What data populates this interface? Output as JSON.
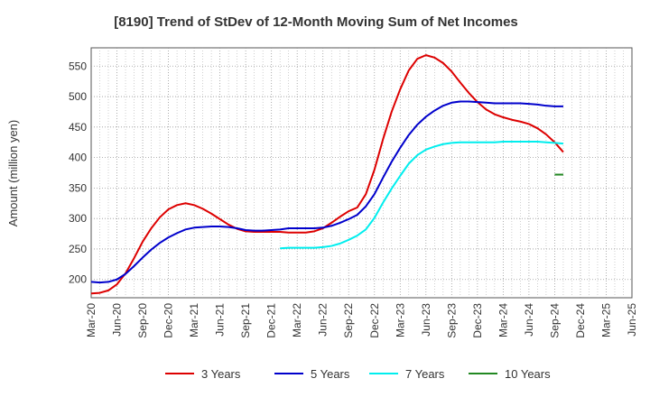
{
  "chart_data": {
    "type": "line",
    "title": "[8190]  Trend of StDev of 12-Month Moving Sum of Net Incomes",
    "xlabel": "",
    "ylabel": "Amount (million yen)",
    "ylim": [
      170,
      580
    ],
    "yticks": [
      200,
      250,
      300,
      350,
      400,
      450,
      500,
      550
    ],
    "x_ticks": [
      "Mar-20",
      "Jun-20",
      "Sep-20",
      "Dec-20",
      "Mar-21",
      "Jun-21",
      "Sep-21",
      "Dec-21",
      "Mar-22",
      "Jun-22",
      "Sep-22",
      "Dec-22",
      "Mar-23",
      "Jun-23",
      "Sep-23",
      "Dec-23",
      "Mar-24",
      "Jun-24",
      "Sep-24",
      "Dec-24",
      "Mar-25",
      "Jun-25"
    ],
    "grid": true,
    "legend_position": "bottom",
    "series": [
      {
        "name": "3 Years",
        "color": "#dd0000",
        "start_index": 0,
        "values": [
          177,
          178,
          182,
          192,
          210,
          235,
          262,
          284,
          302,
          315,
          322,
          325,
          322,
          316,
          308,
          299,
          290,
          283,
          279,
          278,
          278,
          278,
          278,
          277,
          277,
          277,
          279,
          284,
          293,
          303,
          312,
          318,
          340,
          380,
          430,
          475,
          512,
          543,
          562,
          568,
          564,
          555,
          541,
          523,
          506,
          491,
          479,
          471,
          466,
          462,
          459,
          455,
          448,
          438,
          425,
          409
        ]
      },
      {
        "name": "5 Years",
        "color": "#0000cc",
        "start_index": 0,
        "values": [
          196,
          195,
          196,
          200,
          209,
          222,
          236,
          249,
          260,
          269,
          276,
          282,
          285,
          286,
          287,
          287,
          286,
          284,
          281,
          280,
          280,
          281,
          282,
          284,
          284,
          284,
          284,
          285,
          288,
          293,
          299,
          306,
          320,
          340,
          367,
          393,
          416,
          437,
          454,
          467,
          477,
          485,
          490,
          492,
          492,
          491,
          490,
          489,
          489,
          489,
          489,
          488,
          487,
          485,
          484,
          484
        ]
      },
      {
        "name": "7 Years",
        "color": "#00eeee",
        "start_index": 22,
        "values": [
          251,
          252,
          252,
          252,
          252,
          253,
          255,
          259,
          265,
          272,
          282,
          301,
          326,
          349,
          370,
          390,
          404,
          413,
          418,
          422,
          424,
          425,
          425,
          425,
          425,
          425,
          426,
          426,
          426,
          426,
          426,
          425,
          424,
          423
        ]
      },
      {
        "name": "10 Years",
        "color": "#228822",
        "start_index": 54,
        "values": [
          372,
          372
        ]
      }
    ]
  }
}
